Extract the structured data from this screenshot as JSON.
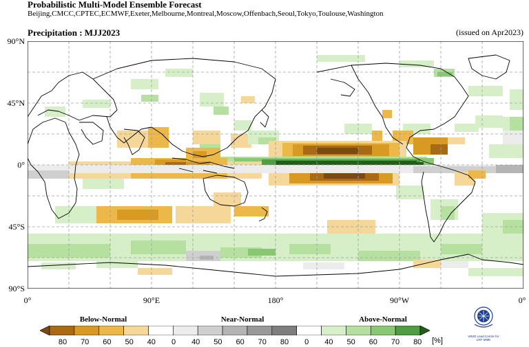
{
  "header": {
    "title": "Probabilistic Multi-Model Ensemble Forecast",
    "centres": "Beijing,CMCC,CPTEC,ECMWF,Exeter,Melbourne,Montreal,Moscow,Offenbach,Seoul,Tokyo,Toulouse,Washington",
    "map_title": "Precipitation : MJJ2023",
    "issued": "(issued on Apr2023)"
  },
  "axes": {
    "lat_labels": [
      "90°N",
      "45°N",
      "0°",
      "45°S",
      "90°S"
    ],
    "lon_labels": [
      "0°",
      "90°E",
      "180°",
      "90°W",
      "0°"
    ]
  },
  "legend": {
    "categories": [
      "Below-Normal",
      "Near-Normal",
      "Above-Normal"
    ],
    "ticks": [
      "80",
      "70",
      "60",
      "50",
      "40",
      "0",
      "40",
      "50",
      "60",
      "70",
      "80",
      "0",
      "40",
      "50",
      "60",
      "70",
      "80"
    ],
    "unit": "[%]",
    "colors": [
      "#7a4a12",
      "#a86a14",
      "#d79a22",
      "#ecb84a",
      "#f5d79a",
      "#ffffff",
      "#ececec",
      "#cfcfcf",
      "#b4b4b4",
      "#999999",
      "#7e7e7e",
      "#ffffff",
      "#d6efc8",
      "#b6e0a0",
      "#89c774",
      "#4f9e43",
      "#225e18"
    ]
  },
  "logo": {
    "icon": "wmo-emblem-icon",
    "text_line1": "WMO Lead Centre for",
    "text_line2": "LRF MME"
  },
  "map": {
    "ocean_color": "#ffffff",
    "coast_color": "#000000",
    "grid_color": "#a0a0a0"
  }
}
